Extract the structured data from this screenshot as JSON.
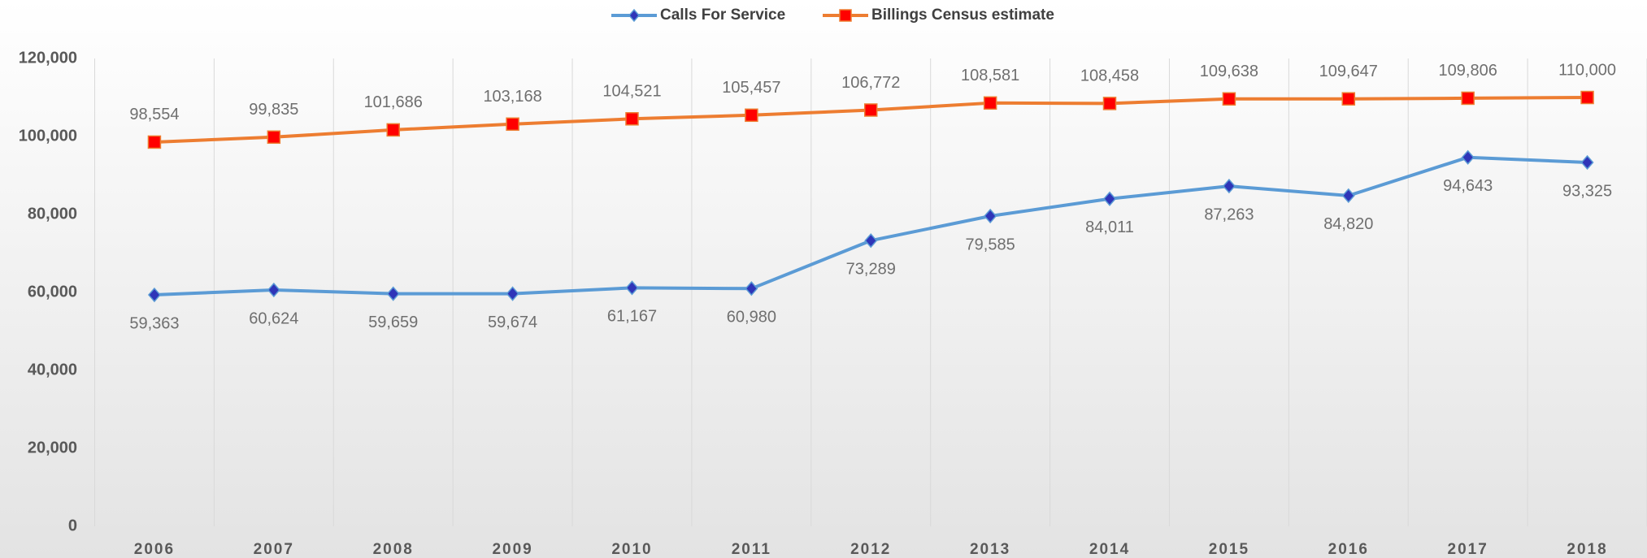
{
  "chart_data": {
    "type": "line",
    "categories": [
      "2006",
      "2007",
      "2008",
      "2009",
      "2010",
      "2011",
      "2012",
      "2013",
      "2014",
      "2015",
      "2016",
      "2017",
      "2018"
    ],
    "series": [
      {
        "name": "Calls For Service",
        "color": "#5b9bd5",
        "marker": "diamond",
        "marker_color": "#2f35b8",
        "values": [
          59363,
          60624,
          59659,
          59674,
          61167,
          60980,
          73289,
          79585,
          84011,
          87263,
          84820,
          94643,
          93325
        ],
        "value_labels": [
          "59,363",
          "60,624",
          "59,659",
          "59,674",
          "61,167",
          "60,980",
          "73,289",
          "79,585",
          "84,011",
          "87,263",
          "84,820",
          "94,643",
          "93,325"
        ]
      },
      {
        "name": "Billings Census estimate",
        "color": "#ed7d31",
        "marker": "square",
        "marker_color": "#ff0000",
        "values": [
          98554,
          99835,
          101686,
          103168,
          104521,
          105457,
          106772,
          108581,
          108458,
          109638,
          109647,
          109806,
          110000
        ],
        "value_labels": [
          "98,554",
          "99,835",
          "101,686",
          "103,168",
          "104,521",
          "105,457",
          "106,772",
          "108,581",
          "108,458",
          "109,638",
          "109,647",
          "109,806",
          "110,000"
        ]
      }
    ],
    "ylim": [
      0,
      120000
    ],
    "yticks": [
      0,
      {
        "value": 20000,
        "label": "20,000"
      },
      {
        "value": 40000,
        "label": "40,000"
      },
      {
        "value": 60000,
        "label": "60,000"
      },
      {
        "value": 80000,
        "label": "80,000"
      },
      {
        "value": 100000,
        "label": "100,000"
      },
      {
        "value": 120000,
        "label": "120,000"
      }
    ],
    "legend": "top"
  }
}
